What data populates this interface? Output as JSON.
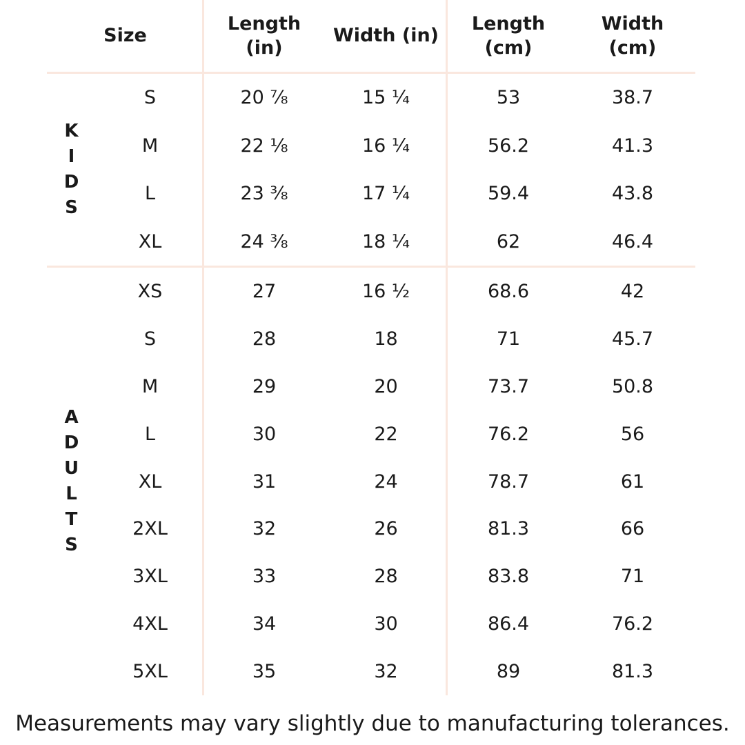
{
  "colors": {
    "background": "#ffffff",
    "text": "#1a1a1a",
    "line": "#fae7de"
  },
  "table": {
    "headers": {
      "size": "Size",
      "length_in": "Length\n(in)",
      "width_in": "Width (in)",
      "length_cm": "Length\n(cm)",
      "width_cm": "Width\n(cm)"
    },
    "sections": [
      {
        "group": "KIDS",
        "rows": [
          {
            "size": "S",
            "length_in": "20 ⅞",
            "width_in": "15 ¼",
            "length_cm": "53",
            "width_cm": "38.7"
          },
          {
            "size": "M",
            "length_in": "22 ⅛",
            "width_in": "16 ¼",
            "length_cm": "56.2",
            "width_cm": "41.3"
          },
          {
            "size": "L",
            "length_in": "23 ⅜",
            "width_in": "17 ¼",
            "length_cm": "59.4",
            "width_cm": "43.8"
          },
          {
            "size": "XL",
            "length_in": "24 ⅜",
            "width_in": "18 ¼",
            "length_cm": "62",
            "width_cm": "46.4"
          }
        ]
      },
      {
        "group": "ADULTS",
        "rows": [
          {
            "size": "XS",
            "length_in": "27",
            "width_in": "16 ½",
            "length_cm": "68.6",
            "width_cm": "42"
          },
          {
            "size": "S",
            "length_in": "28",
            "width_in": "18",
            "length_cm": "71",
            "width_cm": "45.7"
          },
          {
            "size": "M",
            "length_in": "29",
            "width_in": "20",
            "length_cm": "73.7",
            "width_cm": "50.8"
          },
          {
            "size": "L",
            "length_in": "30",
            "width_in": "22",
            "length_cm": "76.2",
            "width_cm": "56"
          },
          {
            "size": "XL",
            "length_in": "31",
            "width_in": "24",
            "length_cm": "78.7",
            "width_cm": "61"
          },
          {
            "size": "2XL",
            "length_in": "32",
            "width_in": "26",
            "length_cm": "81.3",
            "width_cm": "66"
          },
          {
            "size": "3XL",
            "length_in": "33",
            "width_in": "28",
            "length_cm": "83.8",
            "width_cm": "71"
          },
          {
            "size": "4XL",
            "length_in": "34",
            "width_in": "30",
            "length_cm": "86.4",
            "width_cm": "76.2"
          },
          {
            "size": "5XL",
            "length_in": "35",
            "width_in": "32",
            "length_cm": "89",
            "width_cm": "81.3"
          }
        ]
      }
    ]
  },
  "footer": {
    "note": "Measurements may vary slightly due to manufacturing tolerances."
  },
  "chart_data": {
    "type": "table",
    "columns": [
      "Size",
      "Length (in)",
      "Width (in)",
      "Length (cm)",
      "Width (cm)"
    ],
    "row_groups": [
      {
        "group": "KIDS",
        "rows": [
          [
            "S",
            "20 ⅞",
            "15 ¼",
            "53",
            "38.7"
          ],
          [
            "M",
            "22 ⅛",
            "16 ¼",
            "56.2",
            "41.3"
          ],
          [
            "L",
            "23 ⅜",
            "17 ¼",
            "59.4",
            "43.8"
          ],
          [
            "XL",
            "24 ⅜",
            "18 ¼",
            "62",
            "46.4"
          ]
        ]
      },
      {
        "group": "ADULTS",
        "rows": [
          [
            "XS",
            "27",
            "16 ½",
            "68.6",
            "42"
          ],
          [
            "S",
            "28",
            "18",
            "71",
            "45.7"
          ],
          [
            "M",
            "29",
            "20",
            "73.7",
            "50.8"
          ],
          [
            "L",
            "30",
            "22",
            "76.2",
            "56"
          ],
          [
            "XL",
            "31",
            "24",
            "78.7",
            "61"
          ],
          [
            "2XL",
            "32",
            "26",
            "81.3",
            "66"
          ],
          [
            "3XL",
            "33",
            "28",
            "83.8",
            "71"
          ],
          [
            "4XL",
            "34",
            "30",
            "86.4",
            "76.2"
          ],
          [
            "5XL",
            "35",
            "32",
            "89",
            "81.3"
          ]
        ]
      }
    ],
    "note": "Measurements may vary slightly due to manufacturing tolerances.",
    "layout": {
      "grid": "partial",
      "vertical_dividers_after": [
        "Size",
        "Width (in)"
      ],
      "horizontal_dividers_after": [
        "header",
        "KIDS"
      ]
    }
  }
}
